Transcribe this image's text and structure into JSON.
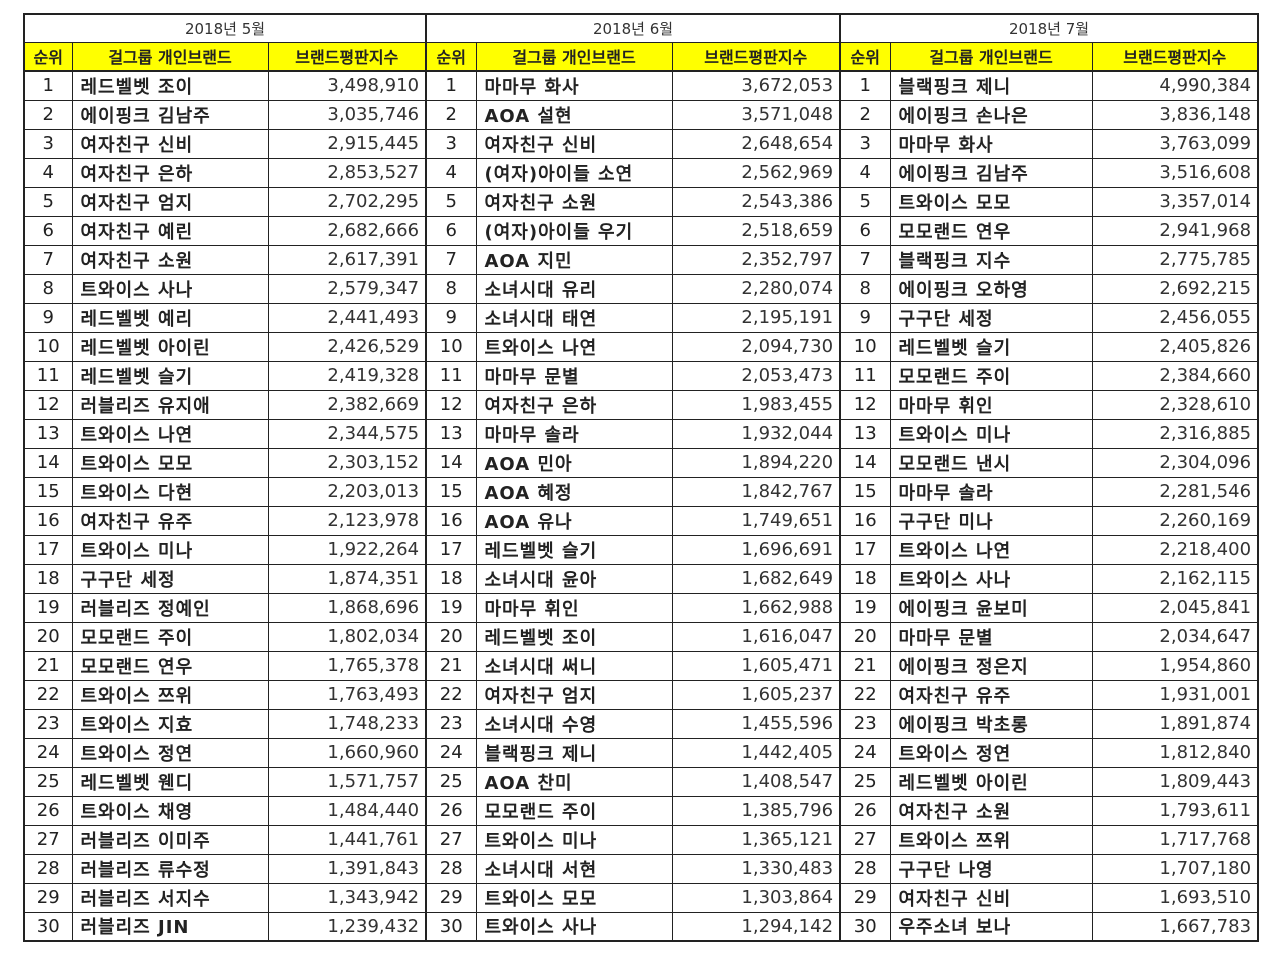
{
  "columns": {
    "rank": "순위",
    "member": "걸그룹 개인브랜드",
    "score": "브랜드평판지수"
  },
  "months": [
    {
      "title": "2018년 5월",
      "rows": [
        {
          "rank": "1",
          "member": "레드벨벳 조이",
          "score": "3,498,910"
        },
        {
          "rank": "2",
          "member": "에이핑크 김남주",
          "score": "3,035,746"
        },
        {
          "rank": "3",
          "member": "여자친구 신비",
          "score": "2,915,445"
        },
        {
          "rank": "4",
          "member": "여자친구 은하",
          "score": "2,853,527"
        },
        {
          "rank": "5",
          "member": "여자친구 엄지",
          "score": "2,702,295"
        },
        {
          "rank": "6",
          "member": "여자친구 예린",
          "score": "2,682,666"
        },
        {
          "rank": "7",
          "member": "여자친구 소원",
          "score": "2,617,391"
        },
        {
          "rank": "8",
          "member": "트와이스 사나",
          "score": "2,579,347"
        },
        {
          "rank": "9",
          "member": "레드벨벳 예리",
          "score": "2,441,493"
        },
        {
          "rank": "10",
          "member": "레드벨벳 아이린",
          "score": "2,426,529"
        },
        {
          "rank": "11",
          "member": "레드벨벳 슬기",
          "score": "2,419,328"
        },
        {
          "rank": "12",
          "member": "러블리즈 유지애",
          "score": "2,382,669"
        },
        {
          "rank": "13",
          "member": "트와이스 나연",
          "score": "2,344,575"
        },
        {
          "rank": "14",
          "member": "트와이스 모모",
          "score": "2,303,152"
        },
        {
          "rank": "15",
          "member": "트와이스 다현",
          "score": "2,203,013"
        },
        {
          "rank": "16",
          "member": "여자친구 유주",
          "score": "2,123,978"
        },
        {
          "rank": "17",
          "member": "트와이스 미나",
          "score": "1,922,264"
        },
        {
          "rank": "18",
          "member": "구구단 세정",
          "score": "1,874,351"
        },
        {
          "rank": "19",
          "member": "러블리즈 정예인",
          "score": "1,868,696"
        },
        {
          "rank": "20",
          "member": "모모랜드 주이",
          "score": "1,802,034"
        },
        {
          "rank": "21",
          "member": "모모랜드 연우",
          "score": "1,765,378"
        },
        {
          "rank": "22",
          "member": "트와이스 쯔위",
          "score": "1,763,493"
        },
        {
          "rank": "23",
          "member": "트와이스 지효",
          "score": "1,748,233"
        },
        {
          "rank": "24",
          "member": "트와이스 정연",
          "score": "1,660,960"
        },
        {
          "rank": "25",
          "member": "레드벨벳 웬디",
          "score": "1,571,757"
        },
        {
          "rank": "26",
          "member": "트와이스 채영",
          "score": "1,484,440"
        },
        {
          "rank": "27",
          "member": "러블리즈 이미주",
          "score": "1,441,761"
        },
        {
          "rank": "28",
          "member": "러블리즈 류수정",
          "score": "1,391,843"
        },
        {
          "rank": "29",
          "member": "러블리즈 서지수",
          "score": "1,343,942"
        },
        {
          "rank": "30",
          "member": "러블리즈 JIN",
          "score": "1,239,432"
        }
      ]
    },
    {
      "title": "2018년 6월",
      "rows": [
        {
          "rank": "1",
          "member": "마마무 화사",
          "score": "3,672,053"
        },
        {
          "rank": "2",
          "member": "AOA 설현",
          "score": "3,571,048"
        },
        {
          "rank": "3",
          "member": "여자친구 신비",
          "score": "2,648,654"
        },
        {
          "rank": "4",
          "member": "(여자)아이들 소연",
          "score": "2,562,969"
        },
        {
          "rank": "5",
          "member": "여자친구 소원",
          "score": "2,543,386"
        },
        {
          "rank": "6",
          "member": "(여자)아이들 우기",
          "score": "2,518,659"
        },
        {
          "rank": "7",
          "member": "AOA 지민",
          "score": "2,352,797"
        },
        {
          "rank": "8",
          "member": "소녀시대 유리",
          "score": "2,280,074"
        },
        {
          "rank": "9",
          "member": "소녀시대 태연",
          "score": "2,195,191"
        },
        {
          "rank": "10",
          "member": "트와이스 나연",
          "score": "2,094,730"
        },
        {
          "rank": "11",
          "member": "마마무 문별",
          "score": "2,053,473"
        },
        {
          "rank": "12",
          "member": "여자친구 은하",
          "score": "1,983,455"
        },
        {
          "rank": "13",
          "member": "마마무 솔라",
          "score": "1,932,044"
        },
        {
          "rank": "14",
          "member": "AOA 민아",
          "score": "1,894,220"
        },
        {
          "rank": "15",
          "member": "AOA 혜정",
          "score": "1,842,767"
        },
        {
          "rank": "16",
          "member": "AOA 유나",
          "score": "1,749,651"
        },
        {
          "rank": "17",
          "member": "레드벨벳 슬기",
          "score": "1,696,691"
        },
        {
          "rank": "18",
          "member": "소녀시대 윤아",
          "score": "1,682,649"
        },
        {
          "rank": "19",
          "member": "마마무 휘인",
          "score": "1,662,988"
        },
        {
          "rank": "20",
          "member": "레드벨벳 조이",
          "score": "1,616,047"
        },
        {
          "rank": "21",
          "member": "소녀시대 써니",
          "score": "1,605,471"
        },
        {
          "rank": "22",
          "member": "여자친구 엄지",
          "score": "1,605,237"
        },
        {
          "rank": "23",
          "member": "소녀시대 수영",
          "score": "1,455,596"
        },
        {
          "rank": "24",
          "member": "블랙핑크 제니",
          "score": "1,442,405"
        },
        {
          "rank": "25",
          "member": "AOA 찬미",
          "score": "1,408,547"
        },
        {
          "rank": "26",
          "member": "모모랜드 주이",
          "score": "1,385,796"
        },
        {
          "rank": "27",
          "member": "트와이스 미나",
          "score": "1,365,121"
        },
        {
          "rank": "28",
          "member": "소녀시대 서현",
          "score": "1,330,483"
        },
        {
          "rank": "29",
          "member": "트와이스 모모",
          "score": "1,303,864"
        },
        {
          "rank": "30",
          "member": "트와이스 사나",
          "score": "1,294,142"
        }
      ]
    },
    {
      "title": "2018년 7월",
      "rows": [
        {
          "rank": "1",
          "member": "블랙핑크 제니",
          "score": "4,990,384"
        },
        {
          "rank": "2",
          "member": "에이핑크 손나은",
          "score": "3,836,148"
        },
        {
          "rank": "3",
          "member": "마마무 화사",
          "score": "3,763,099"
        },
        {
          "rank": "4",
          "member": "에이핑크 김남주",
          "score": "3,516,608"
        },
        {
          "rank": "5",
          "member": "트와이스 모모",
          "score": "3,357,014"
        },
        {
          "rank": "6",
          "member": "모모랜드 연우",
          "score": "2,941,968"
        },
        {
          "rank": "7",
          "member": "블랙핑크 지수",
          "score": "2,775,785"
        },
        {
          "rank": "8",
          "member": "에이핑크 오하영",
          "score": "2,692,215"
        },
        {
          "rank": "9",
          "member": "구구단 세정",
          "score": "2,456,055"
        },
        {
          "rank": "10",
          "member": "레드벨벳 슬기",
          "score": "2,405,826"
        },
        {
          "rank": "11",
          "member": "모모랜드 주이",
          "score": "2,384,660"
        },
        {
          "rank": "12",
          "member": "마마무 휘인",
          "score": "2,328,610"
        },
        {
          "rank": "13",
          "member": "트와이스 미나",
          "score": "2,316,885"
        },
        {
          "rank": "14",
          "member": "모모랜드 낸시",
          "score": "2,304,096"
        },
        {
          "rank": "15",
          "member": "마마무 솔라",
          "score": "2,281,546"
        },
        {
          "rank": "16",
          "member": "구구단 미나",
          "score": "2,260,169"
        },
        {
          "rank": "17",
          "member": "트와이스 나연",
          "score": "2,218,400"
        },
        {
          "rank": "18",
          "member": "트와이스 사나",
          "score": "2,162,115"
        },
        {
          "rank": "19",
          "member": "에이핑크 윤보미",
          "score": "2,045,841"
        },
        {
          "rank": "20",
          "member": "마마무 문별",
          "score": "2,034,647"
        },
        {
          "rank": "21",
          "member": "에이핑크 정은지",
          "score": "1,954,860"
        },
        {
          "rank": "22",
          "member": "여자친구 유주",
          "score": "1,931,001"
        },
        {
          "rank": "23",
          "member": "에이핑크 박초롱",
          "score": "1,891,874"
        },
        {
          "rank": "24",
          "member": "트와이스 정연",
          "score": "1,812,840"
        },
        {
          "rank": "25",
          "member": "레드벨벳 아이린",
          "score": "1,809,443"
        },
        {
          "rank": "26",
          "member": "여자친구 소원",
          "score": "1,793,611"
        },
        {
          "rank": "27",
          "member": "트와이스 쯔위",
          "score": "1,717,768"
        },
        {
          "rank": "28",
          "member": "구구단 나영",
          "score": "1,707,180"
        },
        {
          "rank": "29",
          "member": "여자친구 신비",
          "score": "1,693,510"
        },
        {
          "rank": "30",
          "member": "우주소녀 보나",
          "score": "1,667,783"
        }
      ]
    }
  ]
}
